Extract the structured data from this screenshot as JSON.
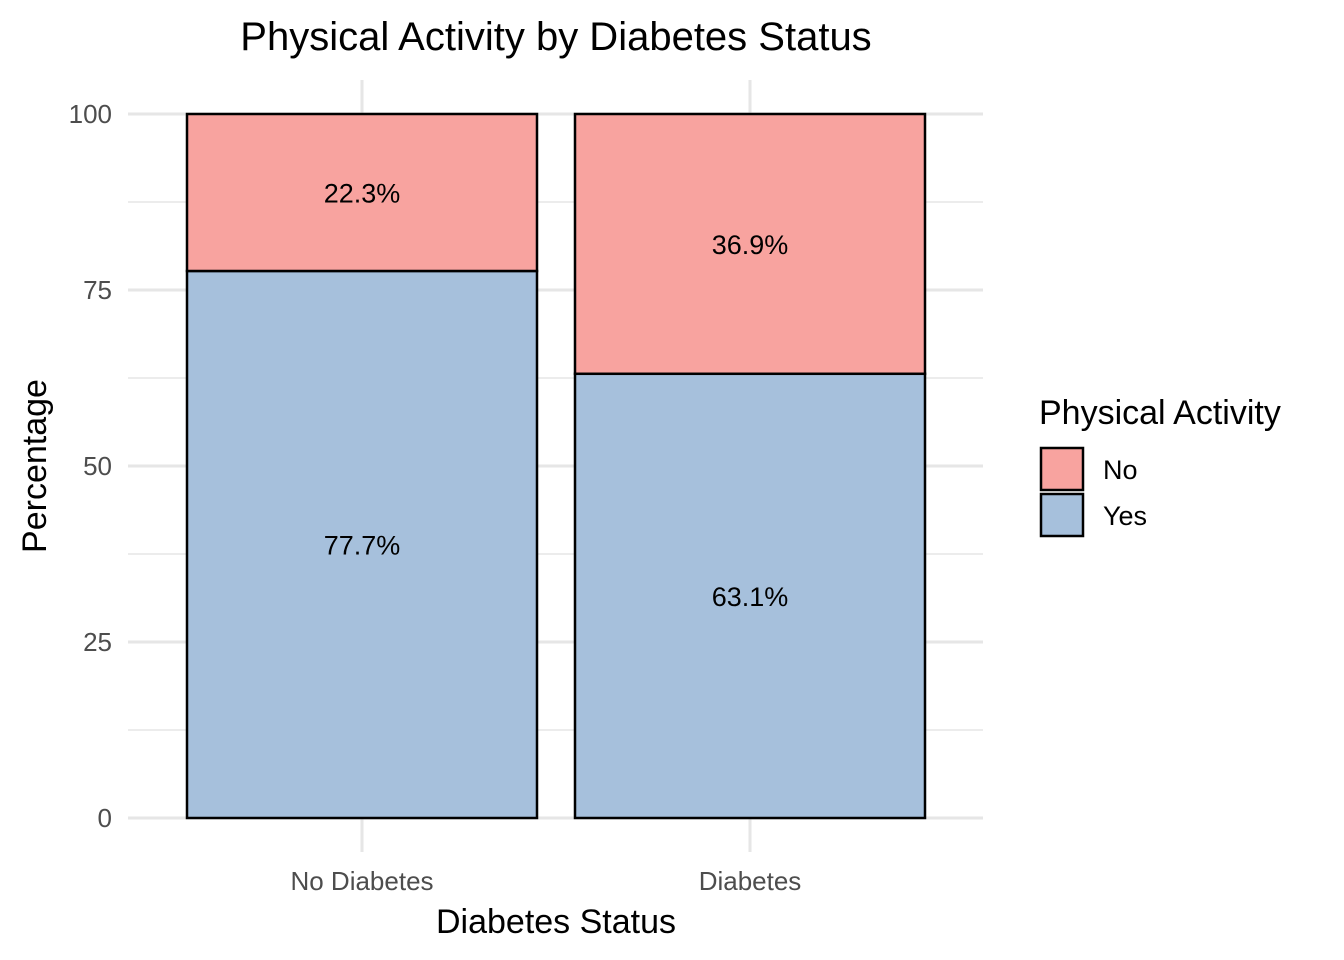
{
  "chart_data": {
    "type": "bar",
    "stacked": true,
    "title": "Physical Activity by Diabetes Status",
    "xlabel": "Diabetes Status",
    "ylabel": "Percentage",
    "categories": [
      "No Diabetes",
      "Diabetes"
    ],
    "ylim": [
      0,
      100
    ],
    "yticks": [
      0,
      25,
      50,
      75,
      100
    ],
    "grid": true,
    "legend": {
      "title": "Physical Activity",
      "placement": "right"
    },
    "series": [
      {
        "name": "Yes",
        "values": [
          77.7,
          63.1
        ],
        "labels": [
          "77.7%",
          "63.1%"
        ],
        "color": "#a6c0dc"
      },
      {
        "name": "No",
        "values": [
          22.3,
          36.9
        ],
        "labels": [
          "22.3%",
          "36.9%"
        ],
        "color": "#f8a39f"
      }
    ],
    "legend_order": [
      "No",
      "Yes"
    ]
  }
}
